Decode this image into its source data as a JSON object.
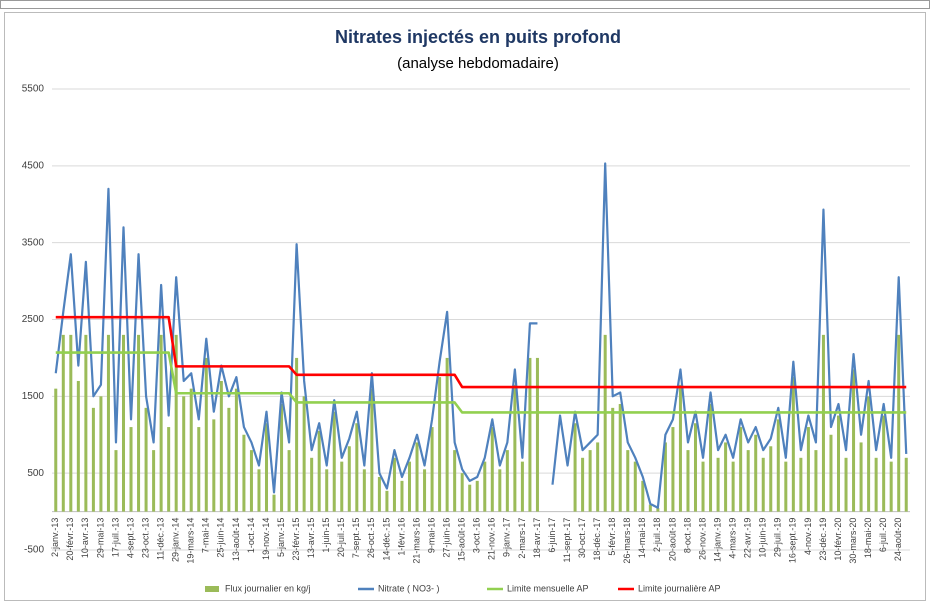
{
  "chart_data": {
    "type": "combo",
    "title": "Nitrates injectés en puits profond",
    "subtitle": "(analyse hebdomadaire)",
    "categories": [
      "2-janv.-13",
      null,
      "20-févr.-13",
      null,
      "10-avr.-13",
      null,
      "29-mai-13",
      null,
      "17-juil.-13",
      null,
      "4-sept.-13",
      null,
      "23-oct.-13",
      null,
      "11-déc.-13",
      null,
      "29-janv.-14",
      null,
      "19-mars-14",
      null,
      "7-mai-14",
      null,
      "25-juin-14",
      null,
      "13-août-14",
      null,
      "1-oct.-14",
      null,
      "19-nov.-14",
      null,
      "5-janv.-15",
      null,
      "23-févr.-15",
      null,
      "13-avr.-15",
      null,
      "1-juin-15",
      null,
      "20-juil.-15",
      null,
      "7-sept.-15",
      null,
      "26-oct.-15",
      null,
      "14-déc.-15",
      null,
      "1-févr.-16",
      null,
      "21-mars-16",
      null,
      "9-mai-16",
      null,
      "27-juin-16",
      null,
      "15-août-16",
      null,
      "3-oct.-16",
      null,
      "21-nov.-16",
      null,
      "9-janv.-17",
      null,
      "2-mars-17",
      null,
      "18-avr.-17",
      null,
      "6-juin-17",
      null,
      "11-sept.-17",
      null,
      "30-oct.-17",
      null,
      "18-déc.-17",
      null,
      "5-févr.-18",
      null,
      "26-mars-18",
      null,
      "14-mai-18",
      null,
      "2-juil.-18",
      null,
      "20-août-18",
      null,
      "8-oct.-18",
      null,
      "26-nov.-18",
      null,
      "14-janv.-19",
      null,
      "4-mars-19",
      null,
      "22-avr.-19",
      null,
      "10-juin-19",
      null,
      "29-juil.-19",
      null,
      "16-sept.-19",
      null,
      "4-nov.-19",
      null,
      "23-déc.-19",
      null,
      "10-févr.-20",
      null,
      "30-mars-20",
      null,
      "18-mai-20",
      null,
      "6-juil.-20",
      null,
      "24-août-20",
      null
    ],
    "series": [
      {
        "name": "Flux journalier en kg/j",
        "kind": "bar",
        "color": "#9bbb59",
        "values": [
          1600,
          2300,
          2300,
          1700,
          2300,
          1350,
          1500,
          2300,
          800,
          2300,
          1100,
          2300,
          1350,
          800,
          2300,
          1100,
          2300,
          1500,
          1600,
          1100,
          2000,
          1200,
          1700,
          1350,
          1600,
          1000,
          800,
          550,
          1150,
          220,
          1400,
          800,
          2000,
          1500,
          700,
          1050,
          550,
          1300,
          650,
          850,
          1150,
          550,
          1600,
          450,
          270,
          700,
          400,
          650,
          900,
          550,
          1100,
          1750,
          2000,
          800,
          500,
          350,
          400,
          650,
          1100,
          550,
          800,
          1650,
          650,
          2000,
          2000,
          null,
          null,
          null,
          null,
          1150,
          700,
          800,
          900,
          2300,
          1350,
          1400,
          800,
          650,
          400,
          90,
          45,
          900,
          1100,
          1650,
          800,
          1150,
          650,
          1400,
          700,
          900,
          650,
          1100,
          800,
          1000,
          700,
          850,
          1200,
          650,
          1750,
          700,
          1100,
          800,
          2300,
          1000,
          1250,
          700,
          1850,
          900,
          1500,
          700,
          1250,
          650,
          2300,
          700
        ]
      },
      {
        "name": "Nitrate ( NO3- )",
        "kind": "line",
        "color": "#4f81bd",
        "values": [
          1800,
          2600,
          3350,
          1900,
          3250,
          1500,
          1650,
          4200,
          900,
          3700,
          1200,
          3350,
          1500,
          900,
          2950,
          1250,
          3050,
          1700,
          1800,
          1200,
          2250,
          1300,
          1900,
          1500,
          1750,
          1100,
          900,
          600,
          1300,
          250,
          1550,
          900,
          3480,
          1700,
          800,
          1150,
          600,
          1450,
          700,
          950,
          1300,
          600,
          1800,
          500,
          300,
          800,
          450,
          700,
          1000,
          600,
          1200,
          1950,
          2600,
          900,
          550,
          400,
          450,
          700,
          1200,
          600,
          900,
          1850,
          700,
          2450,
          2450,
          null,
          350,
          1250,
          600,
          1300,
          800,
          900,
          1000,
          4530,
          1500,
          1550,
          900,
          700,
          450,
          100,
          50,
          1000,
          1200,
          1850,
          900,
          1300,
          700,
          1550,
          800,
          1000,
          700,
          1200,
          900,
          1100,
          800,
          950,
          1350,
          700,
          1950,
          800,
          1250,
          900,
          3930,
          1100,
          1400,
          800,
          2050,
          1000,
          1700,
          800,
          1400,
          700,
          3050,
          750
        ]
      },
      {
        "name": "Limite mensuelle AP",
        "kind": "line",
        "color": "#92d050",
        "values": [
          2070,
          2070,
          2070,
          2070,
          2070,
          2070,
          2070,
          2070,
          2070,
          2070,
          2070,
          2070,
          2070,
          2070,
          2070,
          2070,
          1540,
          1540,
          1540,
          1540,
          1540,
          1540,
          1540,
          1540,
          1540,
          1540,
          1540,
          1540,
          1540,
          1540,
          1540,
          1540,
          1420,
          1420,
          1420,
          1420,
          1420,
          1420,
          1420,
          1420,
          1420,
          1420,
          1420,
          1420,
          1420,
          1420,
          1420,
          1420,
          1420,
          1420,
          1420,
          1420,
          1420,
          1420,
          1290,
          1290,
          1290,
          1290,
          1290,
          1290,
          1290,
          1290,
          1290,
          1290,
          1290,
          1290,
          1290,
          1290,
          1290,
          1290,
          1290,
          1290,
          1290,
          1290,
          1290,
          1290,
          1290,
          1290,
          1290,
          1290,
          1290,
          1290,
          1290,
          1290,
          1290,
          1290,
          1290,
          1290,
          1290,
          1290,
          1290,
          1290,
          1290,
          1290,
          1290,
          1290,
          1290,
          1290,
          1290,
          1290,
          1290,
          1290,
          1290,
          1290,
          1290,
          1290,
          1290,
          1290,
          1290,
          1290,
          1290,
          1290,
          1290,
          1290
        ]
      },
      {
        "name": "Limite journalière AP",
        "kind": "line",
        "color": "#ff0000",
        "values": [
          2530,
          2530,
          2530,
          2530,
          2530,
          2530,
          2530,
          2530,
          2530,
          2530,
          2530,
          2530,
          2530,
          2530,
          2530,
          2530,
          1890,
          1890,
          1890,
          1890,
          1890,
          1890,
          1890,
          1890,
          1890,
          1890,
          1890,
          1890,
          1890,
          1890,
          1890,
          1890,
          1780,
          1780,
          1780,
          1780,
          1780,
          1780,
          1780,
          1780,
          1780,
          1780,
          1780,
          1780,
          1780,
          1780,
          1780,
          1780,
          1780,
          1780,
          1780,
          1780,
          1780,
          1780,
          1620,
          1620,
          1620,
          1620,
          1620,
          1620,
          1620,
          1620,
          1620,
          1620,
          1620,
          1620,
          1620,
          1620,
          1620,
          1620,
          1620,
          1620,
          1620,
          1620,
          1620,
          1620,
          1620,
          1620,
          1620,
          1620,
          1620,
          1620,
          1620,
          1620,
          1620,
          1620,
          1620,
          1620,
          1620,
          1620,
          1620,
          1620,
          1620,
          1620,
          1620,
          1620,
          1620,
          1620,
          1620,
          1620,
          1620,
          1620,
          1620,
          1620,
          1620,
          1620,
          1620,
          1620,
          1620,
          1620,
          1620,
          1620,
          1620,
          1620
        ]
      }
    ],
    "ylim": [
      -500,
      5500
    ],
    "yticks": [
      -500,
      500,
      1500,
      2500,
      3500,
      4500,
      5500
    ],
    "grid": true,
    "legend": "bottom"
  }
}
